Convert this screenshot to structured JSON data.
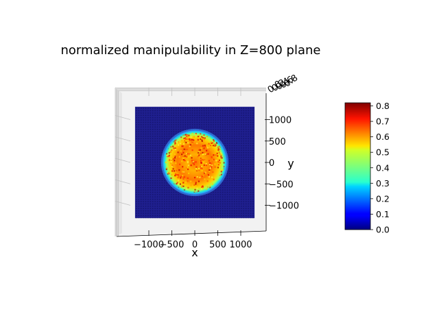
{
  "chart_data": {
    "type": "heatmap",
    "title": "normalized manipulability in Z=800 plane",
    "xlabel": "x",
    "ylabel": "y",
    "x_ticks": [
      "−1000",
      "−500",
      "0",
      "500",
      "1000"
    ],
    "y_ticks": [
      "1000",
      "500",
      "0",
      "−500",
      "−1000"
    ],
    "x_tick_values": [
      -1000,
      -500,
      0,
      500,
      1000
    ],
    "y_tick_values": [
      1000,
      500,
      0,
      -500,
      -1000
    ],
    "z_ticks_overlapping": [
      "0.0",
      "0.2",
      "0.4",
      "0.6",
      "0.8"
    ],
    "x_range": [
      -1400,
      1400
    ],
    "y_range": [
      -1400,
      1400
    ],
    "grid_extent": [
      -1300,
      1300
    ],
    "colormap": "jet",
    "colorbar": {
      "range": [
        0.0,
        0.82
      ],
      "ticks": [
        "0.0",
        "0.1",
        "0.2",
        "0.3",
        "0.4",
        "0.5",
        "0.6",
        "0.7",
        "0.8"
      ],
      "tick_values": [
        0.0,
        0.1,
        0.2,
        0.3,
        0.4,
        0.5,
        0.6,
        0.7,
        0.8
      ]
    },
    "workspace_disk": {
      "center": [
        0,
        0
      ],
      "radius": 720,
      "edge_value": 0.3,
      "interior_value_range": [
        0.55,
        0.82
      ],
      "outside_value": 0.0
    }
  },
  "colors": {
    "pane": "#f2f2f2",
    "grid_line": "#b0b0b0",
    "outside": "#1a1a8c"
  }
}
